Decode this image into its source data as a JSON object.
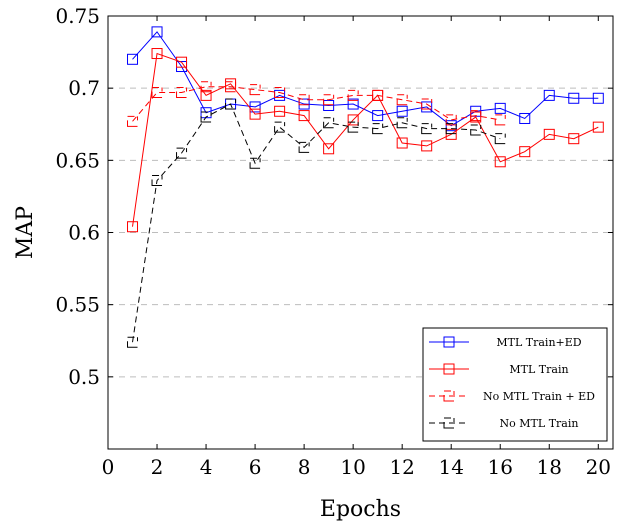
{
  "chart_data": {
    "type": "line",
    "xlabel": "Epochs",
    "ylabel": "MAP",
    "xlim": [
      0,
      20.6
    ],
    "ylim": [
      0.45,
      0.75
    ],
    "xticks": [
      0,
      2,
      4,
      6,
      8,
      10,
      12,
      14,
      16,
      18,
      20
    ],
    "yticks": [
      0.5,
      0.55,
      0.6,
      0.65,
      0.7,
      0.75
    ],
    "ytick_labels": [
      "0.5",
      "0.55",
      "0.6",
      "0.65",
      "0.7",
      "0.75"
    ],
    "grid": "horizontal dashed",
    "legend_position": "bottom-right",
    "series": [
      {
        "name": "MTL Train+ED",
        "color": "#0000ff",
        "line_style": "solid",
        "marker": "square",
        "x": [
          1,
          2,
          3,
          4,
          5,
          6,
          7,
          8,
          9,
          10,
          11,
          12,
          13,
          14,
          15,
          16,
          17,
          18,
          19,
          20
        ],
        "values": [
          0.72,
          0.739,
          0.715,
          0.683,
          0.689,
          0.687,
          0.695,
          0.689,
          0.688,
          0.689,
          0.681,
          0.684,
          0.687,
          0.674,
          0.684,
          0.686,
          0.679,
          0.695,
          0.693,
          0.693
        ]
      },
      {
        "name": "MTL Train",
        "color": "#ff0000",
        "line_style": "solid",
        "marker": "square",
        "x": [
          1,
          2,
          3,
          4,
          5,
          6,
          7,
          8,
          9,
          10,
          11,
          12,
          13,
          14,
          15,
          16,
          17,
          18,
          19,
          20
        ],
        "values": [
          0.604,
          0.724,
          0.718,
          0.695,
          0.703,
          0.682,
          0.684,
          0.681,
          0.658,
          0.678,
          0.695,
          0.662,
          0.66,
          0.668,
          0.68,
          0.649,
          0.656,
          0.668,
          0.665,
          0.673
        ]
      },
      {
        "name": "No MTL Train + ED",
        "color": "#ff0000",
        "line_style": "dashed",
        "marker": "half-square",
        "x": [
          1,
          2,
          3,
          4,
          5,
          6,
          7,
          8,
          9,
          10,
          11,
          12,
          13,
          14,
          15,
          16
        ],
        "values": [
          0.677,
          0.697,
          0.697,
          0.701,
          0.701,
          0.699,
          0.697,
          0.692,
          0.692,
          0.695,
          0.695,
          0.692,
          0.689,
          0.678,
          0.681,
          0.678
        ]
      },
      {
        "name": "No MTL Train",
        "color": "#000000",
        "line_style": "dashed",
        "marker": "half-square",
        "x": [
          1,
          2,
          3,
          4,
          5,
          6,
          7,
          8,
          9,
          10,
          11,
          12,
          13,
          14,
          15,
          16
        ],
        "values": [
          0.524,
          0.636,
          0.655,
          0.68,
          0.689,
          0.648,
          0.673,
          0.659,
          0.676,
          0.673,
          0.672,
          0.676,
          0.672,
          0.672,
          0.671,
          0.665
        ]
      }
    ]
  }
}
